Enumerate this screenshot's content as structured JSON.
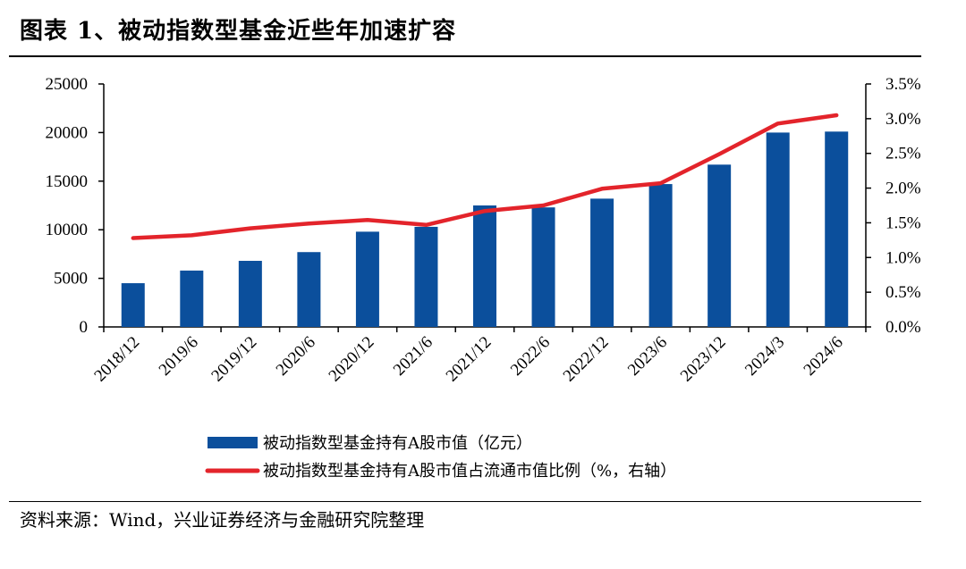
{
  "title": "图表 1、被动指数型基金近些年加速扩容",
  "source": "资料来源：Wind，兴业证券经济与金融研究院整理",
  "chart_data": {
    "type": "bar",
    "categories": [
      "2018/12",
      "2019/6",
      "2019/12",
      "2020/6",
      "2020/12",
      "2021/6",
      "2021/12",
      "2022/6",
      "2022/12",
      "2023/6",
      "2023/12",
      "2024/3",
      "2024/6"
    ],
    "series": [
      {
        "name": "被动指数型基金持有A股市值（亿元）",
        "type": "bar",
        "axis": "left",
        "color": "#0B4F9C",
        "values": [
          4500,
          5800,
          6800,
          7700,
          9800,
          10300,
          12500,
          12300,
          13200,
          14700,
          16700,
          20000,
          20100
        ]
      },
      {
        "name": "被动指数型基金持有A股市值占流通市值比例（%，右轴）",
        "type": "line",
        "axis": "right",
        "color": "#E3242B",
        "values": [
          1.28,
          1.32,
          1.42,
          1.49,
          1.54,
          1.47,
          1.67,
          1.75,
          1.99,
          2.07,
          2.49,
          2.93,
          3.05
        ]
      }
    ],
    "y_left": {
      "min": 0,
      "max": 25000,
      "ticks": [
        "0",
        "5000",
        "10000",
        "15000",
        "20000",
        "25000"
      ]
    },
    "y_right": {
      "min": 0,
      "max": 3.5,
      "ticks": [
        "0.0%",
        "0.5%",
        "1.0%",
        "1.5%",
        "2.0%",
        "2.5%",
        "3.0%",
        "3.5%"
      ]
    },
    "grid": false,
    "legend_position": "bottom"
  }
}
